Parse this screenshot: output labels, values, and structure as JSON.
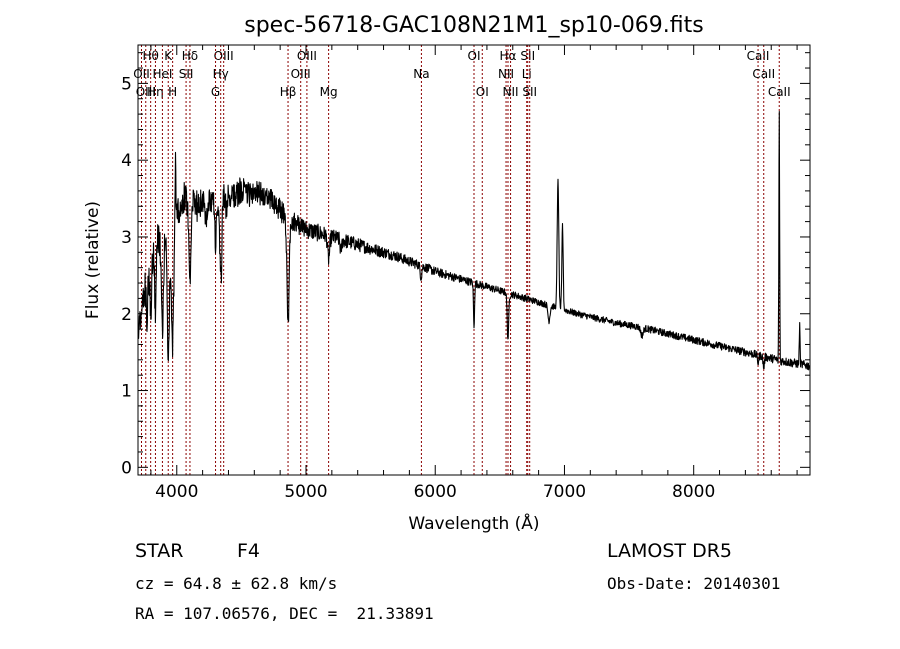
{
  "chart_data": {
    "type": "line",
    "title": "spec-56718-GAC108N21M1_sp10-069.fits",
    "xlabel": "Wavelength (Å)",
    "ylabel": "Flux (relative)",
    "xlim": [
      3700,
      8900
    ],
    "ylim": [
      -0.1,
      5.5
    ],
    "xticks": [
      4000,
      5000,
      6000,
      7000,
      8000
    ],
    "yticks": [
      0,
      1,
      2,
      3,
      4,
      5
    ],
    "grid": false,
    "line_color": "#000000",
    "marker_color": "#8b0000",
    "continuum": [
      [
        3700,
        1.8
      ],
      [
        3750,
        2.3
      ],
      [
        3800,
        2.7
      ],
      [
        3850,
        3.0
      ],
      [
        3900,
        3.0
      ],
      [
        3950,
        2.9
      ],
      [
        4000,
        3.3
      ],
      [
        4050,
        3.5
      ],
      [
        4100,
        3.5
      ],
      [
        4150,
        3.4
      ],
      [
        4200,
        3.45
      ],
      [
        4250,
        3.5
      ],
      [
        4300,
        3.45
      ],
      [
        4350,
        3.5
      ],
      [
        4400,
        3.5
      ],
      [
        4450,
        3.55
      ],
      [
        4500,
        3.6
      ],
      [
        4550,
        3.55
      ],
      [
        4600,
        3.6
      ],
      [
        4650,
        3.55
      ],
      [
        4700,
        3.5
      ],
      [
        4750,
        3.45
      ],
      [
        4800,
        3.35
      ],
      [
        4850,
        3.25
      ],
      [
        4900,
        3.2
      ],
      [
        4950,
        3.15
      ],
      [
        5000,
        3.1
      ],
      [
        5100,
        3.05
      ],
      [
        5200,
        3.0
      ],
      [
        5300,
        2.95
      ],
      [
        5400,
        2.9
      ],
      [
        5500,
        2.85
      ],
      [
        5600,
        2.8
      ],
      [
        5700,
        2.75
      ],
      [
        5800,
        2.68
      ],
      [
        5900,
        2.62
      ],
      [
        6000,
        2.55
      ],
      [
        6100,
        2.5
      ],
      [
        6200,
        2.45
      ],
      [
        6300,
        2.4
      ],
      [
        6400,
        2.35
      ],
      [
        6500,
        2.3
      ],
      [
        6600,
        2.25
      ],
      [
        6700,
        2.2
      ],
      [
        6800,
        2.15
      ],
      [
        6900,
        2.1
      ],
      [
        7000,
        2.05
      ],
      [
        7100,
        2.0
      ],
      [
        7200,
        1.96
      ],
      [
        7300,
        1.92
      ],
      [
        7400,
        1.88
      ],
      [
        7500,
        1.85
      ],
      [
        7600,
        1.82
      ],
      [
        7700,
        1.78
      ],
      [
        7800,
        1.74
      ],
      [
        7900,
        1.7
      ],
      [
        8000,
        1.66
      ],
      [
        8100,
        1.62
      ],
      [
        8200,
        1.58
      ],
      [
        8300,
        1.54
      ],
      [
        8400,
        1.5
      ],
      [
        8500,
        1.46
      ],
      [
        8600,
        1.42
      ],
      [
        8700,
        1.38
      ],
      [
        8800,
        1.35
      ],
      [
        8900,
        1.32
      ]
    ],
    "features": [
      [
        3770,
        -0.5,
        6
      ],
      [
        3800,
        -0.7,
        6
      ],
      [
        3835,
        -0.9,
        6
      ],
      [
        3889,
        -1.2,
        8
      ],
      [
        3934,
        -1.5,
        8
      ],
      [
        3968,
        -1.4,
        8
      ],
      [
        3990,
        0.9,
        3
      ],
      [
        4102,
        -1.2,
        8
      ],
      [
        4227,
        -0.3,
        5
      ],
      [
        4300,
        -0.6,
        6
      ],
      [
        4340,
        -1.1,
        8
      ],
      [
        4384,
        -0.2,
        5
      ],
      [
        4861,
        -1.4,
        8
      ],
      [
        5175,
        -0.3,
        8
      ],
      [
        5270,
        -0.15,
        6
      ],
      [
        5890,
        -0.15,
        6
      ],
      [
        6300,
        -0.6,
        4
      ],
      [
        6563,
        -0.6,
        6
      ],
      [
        6880,
        -0.2,
        8
      ],
      [
        6950,
        1.7,
        6
      ],
      [
        6985,
        1.1,
        5
      ],
      [
        7600,
        -0.1,
        10
      ],
      [
        8498,
        -0.1,
        5
      ],
      [
        8542,
        -0.15,
        5
      ],
      [
        8662,
        3.4,
        3
      ],
      [
        8662,
        -0.12,
        6
      ],
      [
        8820,
        0.5,
        3
      ]
    ],
    "noise": [
      0.22,
      0.2,
      0.12,
      0.07,
      0.05,
      0.04,
      0.045,
      0.05,
      0.06
    ],
    "lines": [
      {
        "label": "Hθ",
        "x": 3798,
        "row": 0
      },
      {
        "label": "OII",
        "x": 3727,
        "row": 1
      },
      {
        "label": "OIII",
        "x": 3760,
        "row": 2
      },
      {
        "label": "Hη",
        "x": 3835,
        "row": 2
      },
      {
        "label": "HeI",
        "x": 3889,
        "row": 1
      },
      {
        "label": "K",
        "x": 3934,
        "row": 0
      },
      {
        "label": "H",
        "x": 3968,
        "row": 2
      },
      {
        "label": "Hδ",
        "x": 4102,
        "row": 0
      },
      {
        "label": "SII",
        "x": 4072,
        "row": 1
      },
      {
        "label": "OIII",
        "x": 4363,
        "row": 0
      },
      {
        "label": "Hγ",
        "x": 4340,
        "row": 1
      },
      {
        "label": "G",
        "x": 4300,
        "row": 2
      },
      {
        "label": "Hβ",
        "x": 4861,
        "row": 2
      },
      {
        "label": "OIII",
        "x": 4959,
        "row": 1
      },
      {
        "label": "OIII",
        "x": 5007,
        "row": 0
      },
      {
        "label": "Mg",
        "x": 5175,
        "row": 2
      },
      {
        "label": "Na",
        "x": 5893,
        "row": 1
      },
      {
        "label": "OI",
        "x": 6300,
        "row": 0
      },
      {
        "label": "OI",
        "x": 6364,
        "row": 2
      },
      {
        "label": "Hα",
        "x": 6563,
        "row": 0
      },
      {
        "label": "NII",
        "x": 6548,
        "row": 1
      },
      {
        "label": "NII",
        "x": 6583,
        "row": 2
      },
      {
        "label": "SII",
        "x": 6716,
        "row": 0
      },
      {
        "label": "Li",
        "x": 6708,
        "row": 1
      },
      {
        "label": "SII",
        "x": 6731,
        "row": 2
      },
      {
        "label": "CaII",
        "x": 8498,
        "row": 0
      },
      {
        "label": "CaII",
        "x": 8542,
        "row": 1
      },
      {
        "label": "CaII",
        "x": 8662,
        "row": 2
      }
    ]
  },
  "info": {
    "class": "STAR",
    "subclass": "F4",
    "survey": "LAMOST DR5",
    "cz": "cz = 64.8 ± 62.8 km/s",
    "obs_date": "Obs-Date: 20140301",
    "coords": "RA = 107.06576, DEC =  21.33891"
  }
}
